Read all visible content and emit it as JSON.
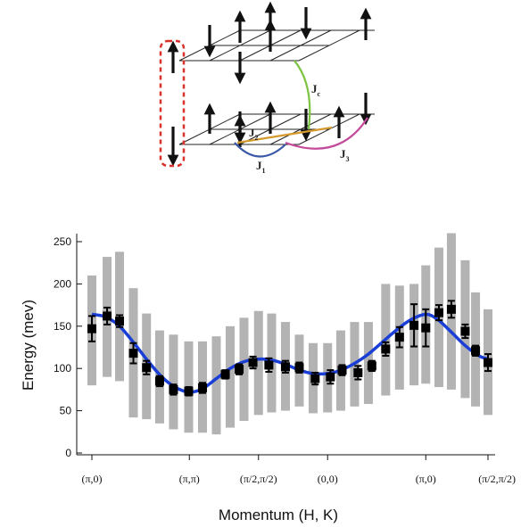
{
  "diagram": {
    "labels": {
      "jc": "J",
      "jc_sub": "c",
      "j1": "J",
      "j1_sub": "1",
      "j2": "J",
      "j2_sub": "2",
      "j3": "J",
      "j3_sub": "3"
    },
    "colors": {
      "lattice": "#222222",
      "spin": "#111111",
      "dimer_box": "#d9322b",
      "jc": "#7cc442",
      "j1": "#3a57a8",
      "j2": "#d49a2e",
      "j3": "#c44a9a"
    }
  },
  "chart_data": {
    "type": "scatter",
    "xlabel": "Momentum (H, K)",
    "ylabel": "Energy (mev)",
    "ylim": [
      0,
      260
    ],
    "yticks": [
      0,
      50,
      100,
      150,
      200,
      250
    ],
    "xlim": [
      0,
      5.73
    ],
    "xticks": [
      {
        "pos": 0,
        "label": "(π,0)"
      },
      {
        "pos": 1.41,
        "label": "(π,π)"
      },
      {
        "pos": 2.41,
        "label": "(π/2,π/2)"
      },
      {
        "pos": 3.41,
        "label": "(0,0)"
      },
      {
        "pos": 4.83,
        "label": "(π,0)"
      },
      {
        "pos": 5.73,
        "label": "(π/2,π/2)"
      }
    ],
    "grid": false,
    "colors": {
      "data": "#000000",
      "fit": "#1a3fd6",
      "bands": "#b3b3b3"
    },
    "series": [
      {
        "kind": "points_with_errorbars",
        "x": [
          0.0,
          0.22,
          0.4,
          0.6,
          0.79,
          0.98,
          1.18,
          1.4,
          1.6,
          1.93,
          2.13,
          2.33,
          2.56,
          2.8,
          3.0,
          3.23,
          3.45,
          3.62,
          3.85,
          4.05,
          4.25,
          4.45,
          4.66,
          4.83,
          5.02,
          5.2,
          5.4,
          5.55,
          5.73
        ],
        "y": [
          147,
          162,
          156,
          118,
          101,
          85,
          75,
          73,
          77,
          93,
          99,
          107,
          104,
          102,
          101,
          88,
          90,
          98,
          95,
          103,
          123,
          137,
          151,
          148,
          166,
          170,
          144,
          121,
          107
        ],
        "yerr": [
          15,
          10,
          7,
          12,
          8,
          6,
          6,
          5,
          6,
          5,
          6,
          7,
          8,
          7,
          6,
          7,
          8,
          6,
          8,
          6,
          8,
          12,
          25,
          22,
          9,
          10,
          8,
          6,
          10
        ]
      },
      {
        "kind": "fit_line",
        "x": [
          0.0,
          0.2,
          0.4,
          0.6,
          0.8,
          1.0,
          1.2,
          1.41,
          1.6,
          1.8,
          2.0,
          2.2,
          2.41,
          2.6,
          2.8,
          3.0,
          3.2,
          3.41,
          3.6,
          3.8,
          4.0,
          4.2,
          4.4,
          4.6,
          4.83,
          5.0,
          5.2,
          5.4,
          5.6,
          5.73
        ],
        "y": [
          164,
          161,
          150,
          131,
          110,
          91,
          78,
          72,
          76,
          88,
          100,
          108,
          111,
          110,
          105,
          98,
          94,
          94,
          98,
          106,
          117,
          131,
          145,
          157,
          164,
          158,
          143,
          127,
          115,
          111
        ]
      },
      {
        "kind": "ranges",
        "x": [
          0.0,
          0.22,
          0.4,
          0.6,
          0.79,
          0.98,
          1.18,
          1.4,
          1.6,
          1.8,
          2.0,
          2.2,
          2.41,
          2.6,
          2.8,
          3.0,
          3.2,
          3.41,
          3.6,
          3.8,
          4.0,
          4.25,
          4.45,
          4.66,
          4.83,
          5.02,
          5.2,
          5.4,
          5.55,
          5.73
        ],
        "low": [
          80,
          90,
          85,
          42,
          40,
          35,
          28,
          24,
          24,
          22,
          30,
          38,
          45,
          48,
          50,
          55,
          47,
          48,
          50,
          55,
          58,
          68,
          75,
          80,
          82,
          78,
          75,
          65,
          55,
          45
        ],
        "high": [
          210,
          232,
          238,
          195,
          165,
          145,
          140,
          132,
          132,
          138,
          150,
          160,
          168,
          165,
          155,
          140,
          130,
          130,
          145,
          155,
          155,
          200,
          198,
          200,
          222,
          243,
          260,
          228,
          190,
          170
        ]
      }
    ]
  }
}
